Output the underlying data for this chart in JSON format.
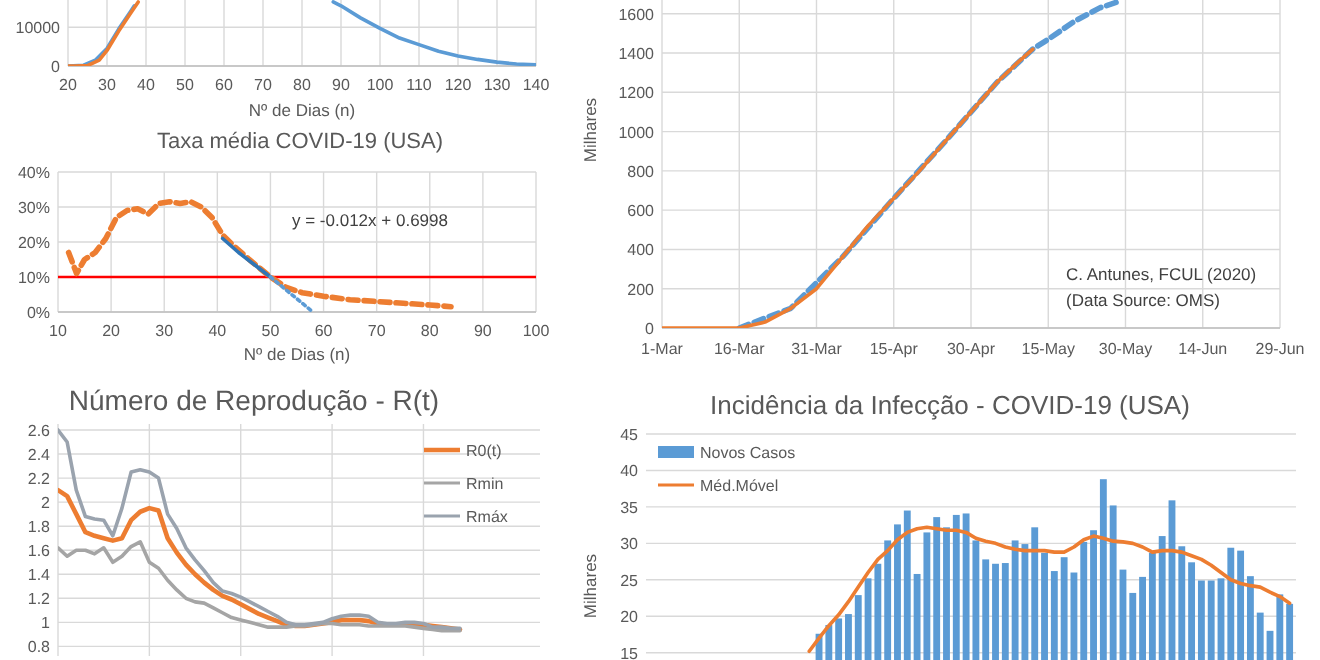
{
  "chart_data": [
    {
      "type": "line",
      "xlabel": "Nº de Dias (n)",
      "xlim": [
        20,
        140
      ],
      "xticks": [
        20,
        30,
        40,
        50,
        60,
        70,
        80,
        90,
        100,
        110,
        120,
        130,
        140
      ],
      "ylim": [
        0,
        17000
      ],
      "yticks": [
        0,
        10000
      ],
      "grid": true,
      "series": [
        {
          "color": "#5b9bd5",
          "x": [
            20,
            24,
            27,
            30,
            33,
            36,
            37,
            60,
            88,
            90,
            95,
            100,
            105,
            110,
            115,
            120,
            125,
            130,
            135,
            140
          ],
          "values": [
            0,
            200,
            1500,
            4500,
            9500,
            14000,
            15500,
            null,
            16500,
            15500,
            12400,
            9700,
            7200,
            5500,
            3800,
            2600,
            1700,
            1000,
            500,
            300
          ]
        },
        {
          "color": "#ed7d31",
          "x": [
            20,
            22,
            25,
            28,
            30,
            33,
            36,
            38
          ],
          "values": [
            0,
            0,
            100,
            1500,
            4000,
            9000,
            13500,
            16500
          ]
        }
      ]
    },
    {
      "type": "line",
      "title": "Taxa média COVID-19 (USA)",
      "xlabel": "Nº de Dias (n)",
      "xlim": [
        10,
        100
      ],
      "xticks": [
        10,
        20,
        30,
        40,
        50,
        60,
        70,
        80,
        90,
        100
      ],
      "ylim": [
        0,
        40
      ],
      "yticks": [
        {
          "value": 0,
          "label": "0%"
        },
        {
          "value": 10,
          "label": "10%"
        },
        {
          "value": 20,
          "label": "20%"
        },
        {
          "value": 30,
          "label": "30%"
        },
        {
          "value": 40,
          "label": "40%"
        }
      ],
      "grid": true,
      "ref_lines": [
        {
          "axis": "y",
          "value": 10,
          "color": "#ff0000"
        }
      ],
      "annotations": [
        "y = -0.012x + 0.6998"
      ],
      "series": [
        {
          "color": "#ed7d31",
          "line_style": "dashed",
          "x": [
            12,
            13.5,
            15,
            17,
            19,
            21,
            23,
            25,
            27,
            29,
            31,
            33,
            35,
            37,
            39,
            41,
            43,
            46,
            48,
            50,
            53,
            56,
            60,
            65,
            70,
            75,
            80,
            84
          ],
          "values": [
            17,
            11,
            15,
            17,
            21,
            27,
            29,
            29.5,
            28,
            31,
            31.5,
            31,
            31.5,
            30,
            27,
            22,
            19,
            15,
            12.5,
            10,
            7,
            5.5,
            4.5,
            3.5,
            3,
            2.5,
            2,
            1.5
          ]
        },
        {
          "color": "#2e75b6",
          "x": [
            41,
            44,
            47,
            50
          ],
          "values": [
            21,
            17,
            13.5,
            10
          ]
        },
        {
          "color": "#5b9bd5",
          "line_style": "dotted",
          "x": [
            50,
            58
          ],
          "values": [
            10,
            0
          ]
        }
      ]
    },
    {
      "type": "line",
      "ylabel": "Milhares",
      "xlim": [
        "--03-01",
        "--06-29"
      ],
      "xticks": [
        {
          "value": "--03-01",
          "label": "1-Mar"
        },
        {
          "value": "--03-16",
          "label": "16-Mar"
        },
        {
          "value": "--03-31",
          "label": "31-Mar"
        },
        {
          "value": "--04-15",
          "label": "15-Apr"
        },
        {
          "value": "--04-30",
          "label": "30-Apr"
        },
        {
          "value": "--05-15",
          "label": "15-May"
        },
        {
          "value": "--05-30",
          "label": "30-May"
        },
        {
          "value": "--06-14",
          "label": "14-Jun"
        },
        {
          "value": "--06-29",
          "label": "29-Jun"
        }
      ],
      "ylim": [
        0,
        1670
      ],
      "yticks": [
        0,
        200,
        400,
        600,
        800,
        1000,
        1200,
        1400,
        1600
      ],
      "grid": true,
      "annotations": [
        "C. Antunes, FCUL (2020)",
        "(Data Source: OMS)"
      ],
      "series": [
        {
          "color": "#5b9bd5",
          "line_style": "dashed",
          "x": [
            "--03-16",
            "--03-26",
            "--04-05",
            "--04-15",
            "--04-25",
            "--05-05",
            "--05-12",
            "--05-15",
            "--05-20",
            "--05-25",
            "--05-29"
          ],
          "values": [
            0,
            100,
            360,
            660,
            950,
            1250,
            1420,
            1470,
            1560,
            1630,
            1665
          ]
        },
        {
          "color": "#ed7d31",
          "x": [
            "--03-01",
            "--03-16",
            "--03-21",
            "--03-26",
            "--03-31",
            "--04-05",
            "--04-10",
            "--04-15",
            "--04-20",
            "--04-25",
            "--04-30",
            "--05-05",
            "--05-09",
            "--05-12"
          ],
          "values": [
            0,
            0,
            30,
            100,
            200,
            360,
            520,
            660,
            800,
            950,
            1100,
            1250,
            1350,
            1420
          ]
        }
      ]
    },
    {
      "type": "line",
      "title": "Número de Reprodução - R(t)",
      "categories": [
        null,
        null,
        null,
        null,
        null,
        null,
        null,
        null,
        null,
        null,
        null,
        null,
        null,
        null,
        null,
        null,
        null,
        null,
        null,
        null,
        null,
        null,
        null,
        null,
        null,
        null,
        null,
        null,
        null,
        null,
        null,
        null,
        null,
        null,
        null,
        null,
        null,
        null,
        null,
        null,
        null,
        null,
        null,
        null,
        null
      ],
      "ylim": [
        0.72,
        2.65
      ],
      "yticks": [
        0.8,
        1.0,
        1.2,
        1.4,
        1.6,
        1.8,
        2.0,
        2.2,
        2.4,
        2.6
      ],
      "tick_labels": "y",
      "grid": true,
      "legend": "right",
      "series": [
        {
          "name": "R0(t)",
          "color": "#ed7d31",
          "values": [
            2.1,
            2.05,
            1.9,
            1.75,
            1.72,
            1.7,
            1.68,
            1.7,
            1.85,
            1.92,
            1.95,
            1.93,
            1.7,
            1.58,
            1.48,
            1.4,
            1.33,
            1.27,
            1.22,
            1.19,
            1.15,
            1.11,
            1.07,
            1.04,
            1.01,
            0.98,
            0.97,
            0.97,
            0.98,
            0.99,
            1.0,
            1.02,
            1.02,
            1.02,
            1.01,
            0.99,
            0.98,
            0.98,
            0.98,
            0.98,
            0.98,
            0.97,
            0.96,
            0.95,
            0.94
          ]
        },
        {
          "name": "Rmin",
          "color": "#a5a5a5",
          "values": [
            1.62,
            1.55,
            1.6,
            1.6,
            1.57,
            1.62,
            1.5,
            1.55,
            1.63,
            1.67,
            1.5,
            1.45,
            1.35,
            1.27,
            1.2,
            1.17,
            1.16,
            1.12,
            1.08,
            1.04,
            1.02,
            1.0,
            0.98,
            0.96,
            0.96,
            0.96,
            0.97,
            0.97,
            0.98,
            0.99,
            0.99,
            0.98,
            0.98,
            0.98,
            0.97,
            0.97,
            0.97,
            0.97,
            0.97,
            0.96,
            0.95,
            0.94,
            0.93,
            0.93,
            0.93
          ]
        },
        {
          "name": "Rmáx",
          "color": "#9aa3ae",
          "values": [
            2.6,
            2.5,
            2.1,
            1.88,
            1.86,
            1.85,
            1.72,
            1.95,
            2.25,
            2.27,
            2.25,
            2.2,
            1.9,
            1.78,
            1.62,
            1.52,
            1.43,
            1.33,
            1.26,
            1.24,
            1.21,
            1.17,
            1.13,
            1.09,
            1.05,
            1.0,
            0.98,
            0.98,
            0.99,
            1.0,
            1.03,
            1.05,
            1.06,
            1.06,
            1.05,
            1.0,
            0.99,
            0.99,
            1.0,
            1.0,
            0.99,
            0.96,
            0.96,
            0.95,
            0.95
          ]
        }
      ]
    },
    {
      "type": "bar",
      "title": "Incidência da Infecção - COVID-19 (USA)",
      "ylabel": "Milhares",
      "categories": [
        null,
        null,
        null,
        null,
        null,
        null,
        null,
        null,
        null,
        null,
        null,
        null,
        null,
        null,
        null,
        null,
        null,
        null,
        null,
        null,
        null,
        null,
        null,
        null,
        null,
        null,
        null,
        null,
        null,
        null,
        null,
        null,
        null,
        null,
        null,
        null,
        null,
        null,
        null,
        null,
        null,
        null,
        null,
        null,
        null,
        null,
        null,
        null,
        null,
        null,
        null,
        null,
        null,
        null,
        null,
        null,
        null,
        null,
        null,
        null,
        null,
        null,
        null,
        null,
        null,
        null
      ],
      "ylim": [
        14,
        45
      ],
      "yticks": [
        15,
        20,
        25,
        30,
        35,
        40,
        45
      ],
      "tick_labels": "y",
      "grid": "y",
      "legend": "top left",
      "series": [
        {
          "name": "Novos Casos",
          "color": "#5b9bd5",
          "values": [
            null,
            null,
            null,
            null,
            null,
            null,
            null,
            null,
            null,
            null,
            null,
            null,
            null,
            null,
            null,
            null,
            null,
            17.6,
            18.8,
            19.7,
            20.3,
            22.9,
            25.2,
            27.2,
            30.4,
            32.6,
            34.5,
            25.8,
            31.5,
            33.6,
            32.2,
            33.9,
            34.1,
            30.4,
            27.8,
            27.2,
            27.3,
            30.4,
            29.9,
            32.2,
            28.7,
            26.2,
            28.1,
            26.0,
            30.2,
            31.8,
            38.8,
            35.2,
            26.4,
            23.2,
            25.4,
            28.7,
            31.0,
            35.9,
            29.6,
            27.4,
            24.9,
            24.9,
            25.2,
            29.4,
            29.0,
            25.5,
            20.5,
            18.0,
            23.0,
            21.7
          ]
        },
        {
          "name": "Méd.Móvel",
          "type": "line",
          "color": "#ed7d31",
          "values": [
            null,
            null,
            null,
            null,
            null,
            null,
            null,
            null,
            null,
            null,
            null,
            null,
            null,
            null,
            null,
            null,
            15.2,
            17.0,
            18.7,
            20.2,
            22,
            24,
            26,
            27.8,
            29,
            30.5,
            31.5,
            32,
            32.2,
            32,
            31.8,
            31.8,
            31.5,
            30.7,
            30.3,
            30,
            29.5,
            29.2,
            29,
            29,
            29,
            28.8,
            28.8,
            29.5,
            30.5,
            31,
            30.7,
            30.3,
            30.2,
            30,
            29.5,
            28.8,
            29,
            29,
            28.8,
            28.3,
            27.8,
            27,
            26,
            25,
            24.5,
            24.2,
            24,
            23.3,
            22.7,
            21.8
          ]
        }
      ]
    }
  ]
}
